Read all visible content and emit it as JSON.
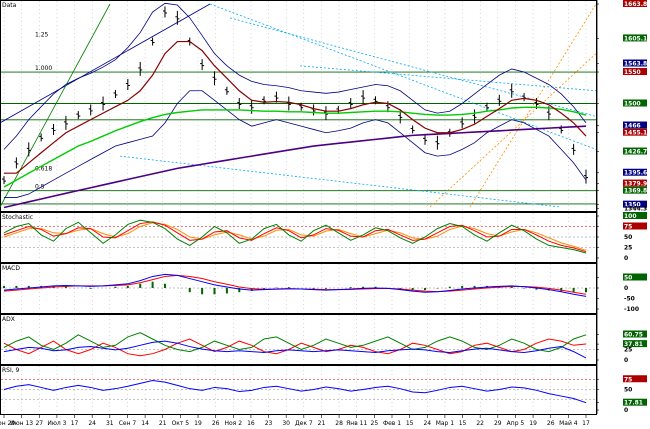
{
  "chart_data": {
    "type": "line",
    "panels": [
      {
        "name": "Data",
        "title": "Data",
        "ylim": [
          1346.7,
          1663.8
        ],
        "log": true,
        "ticks": [
          1663.8,
          1605.18,
          1563.8,
          1550,
          1500,
          1466,
          1455.11,
          1426.77,
          1395.63,
          1379.98,
          1369.82,
          1350,
          1344.3
        ],
        "fib_labels": [
          "1.25",
          "1.000",
          "0.618",
          "0.5"
        ],
        "fib_levels": [
          1605.18,
          1550,
          1395.63,
          1370
        ],
        "horizontal_levels": [
          1550,
          1500,
          1474.8,
          1369.82,
          1351
        ]
      },
      {
        "name": "Stochastic",
        "title": "Stochastic",
        "ylim": [
          0,
          100
        ],
        "ticks": [
          100,
          75,
          50,
          25,
          0
        ],
        "ref_lines": [
          75,
          50,
          25
        ]
      },
      {
        "name": "MACD",
        "title": "MACD",
        "ylim": [
          -100,
          100
        ],
        "ticks": [
          50,
          0,
          -50,
          -100
        ],
        "ref_lines": [
          0
        ]
      },
      {
        "name": "ADX",
        "title": "ADX",
        "ylim": [
          0,
          100
        ],
        "ticks": [
          60.75,
          37.81,
          25,
          0
        ],
        "ref_lines": [
          25
        ]
      },
      {
        "name": "RSI",
        "title": "RSI, 9",
        "ylim": [
          0,
          100
        ],
        "ticks": [
          75,
          50,
          17.81,
          0
        ],
        "ref_lines": [
          75,
          50,
          25
        ]
      }
    ],
    "x_tick_labels": [
      "Мон 29",
      "Июн 13",
      "27",
      "Июл 3",
      "17",
      "24",
      "31",
      "Сен 7",
      "14",
      "21",
      "Окт 5",
      "19",
      "26",
      "Ноя 2",
      "16",
      "23",
      "30",
      "Дек 7",
      "21",
      "28",
      "Янв 11",
      "25",
      "Фев 1",
      "15",
      "24",
      "Мар 1",
      "15",
      "22",
      "29",
      "Апр 5",
      "19",
      "26",
      "Май 4",
      "17"
    ],
    "series": [
      {
        "name": "Price",
        "color": "#000000",
        "values": [
          1385,
          1410,
          1430,
          1448,
          1460,
          1470,
          1482,
          1490,
          1500,
          1515,
          1530,
          1555,
          1600,
          1650,
          1640,
          1600,
          1562,
          1540,
          1520,
          1500,
          1495,
          1505,
          1510,
          1500,
          1495,
          1490,
          1485,
          1490,
          1500,
          1510,
          1505,
          1495,
          1480,
          1460,
          1445,
          1440,
          1455,
          1470,
          1480,
          1495,
          1505,
          1520,
          1510,
          1500,
          1485,
          1460,
          1430,
          1390
        ]
      },
      {
        "name": "MA short",
        "color": "#8b0000",
        "values": [
          1395,
          1395,
          1410,
          1425,
          1440,
          1455,
          1465,
          1475,
          1485,
          1495,
          1505,
          1520,
          1545,
          1580,
          1600,
          1600,
          1585,
          1560,
          1540,
          1520,
          1505,
          1502,
          1503,
          1502,
          1498,
          1492,
          1488,
          1488,
          1492,
          1498,
          1502,
          1500,
          1490,
          1475,
          1462,
          1455,
          1455,
          1460,
          1468,
          1480,
          1492,
          1505,
          1508,
          1505,
          1498,
          1485,
          1470,
          1450
        ]
      },
      {
        "name": "MA mid",
        "color": "#00cc00",
        "values": [
          1375,
          1385,
          1395,
          1405,
          1415,
          1425,
          1435,
          1442,
          1450,
          1458,
          1465,
          1472,
          1478,
          1483,
          1486,
          1488,
          1490,
          1490,
          1490,
          1490,
          1489,
          1488,
          1488,
          1487,
          1487,
          1486,
          1485,
          1485,
          1486,
          1487,
          1488,
          1488,
          1487,
          1485,
          1483,
          1482,
          1482,
          1483,
          1485,
          1488,
          1490,
          1493,
          1494,
          1494,
          1493,
          1491,
          1487,
          1482
        ]
      },
      {
        "name": "MA long",
        "color": "#4b0082",
        "values": [
          1346,
          1350,
          1354,
          1358,
          1362,
          1366,
          1370,
          1374,
          1378,
          1382,
          1386,
          1390,
          1394,
          1398,
          1402,
          1405,
          1408,
          1411,
          1414,
          1417,
          1420,
          1423,
          1426,
          1429,
          1432,
          1435,
          1437,
          1439,
          1441,
          1443,
          1445,
          1447,
          1449,
          1451,
          1452,
          1453,
          1454,
          1455,
          1456,
          1457,
          1458,
          1459,
          1460,
          1461,
          1462,
          1463,
          1464,
          1465
        ]
      },
      {
        "name": "Band upper",
        "color": "#000080",
        "values": [
          1430,
          1450,
          1475,
          1495,
          1515,
          1530,
          1540,
          1548,
          1558,
          1570,
          1590,
          1615,
          1650,
          1665,
          1662,
          1640,
          1610,
          1580,
          1560,
          1545,
          1535,
          1530,
          1528,
          1525,
          1520,
          1518,
          1516,
          1518,
          1522,
          1526,
          1530,
          1528,
          1520,
          1505,
          1490,
          1485,
          1488,
          1500,
          1515,
          1530,
          1545,
          1555,
          1550,
          1540,
          1530,
          1515,
          1495,
          1470
        ]
      },
      {
        "name": "Band lower",
        "color": "#000080",
        "values": [
          1360,
          1360,
          1365,
          1375,
          1385,
          1395,
          1405,
          1415,
          1425,
          1435,
          1440,
          1445,
          1450,
          1470,
          1500,
          1520,
          1520,
          1505,
          1490,
          1475,
          1465,
          1470,
          1475,
          1470,
          1465,
          1460,
          1455,
          1458,
          1462,
          1470,
          1475,
          1470,
          1455,
          1440,
          1425,
          1420,
          1422,
          1430,
          1440,
          1455,
          1465,
          1475,
          1470,
          1460,
          1450,
          1430,
          1410,
          1385
        ]
      },
      {
        "name": "%K",
        "color": "#008000",
        "values": [
          60,
          75,
          82,
          55,
          40,
          70,
          85,
          60,
          35,
          55,
          80,
          90,
          85,
          70,
          45,
          30,
          50,
          75,
          60,
          35,
          45,
          70,
          80,
          55,
          40,
          65,
          78,
          60,
          42,
          55,
          72,
          65,
          48,
          35,
          50,
          70,
          82,
          75,
          55,
          40,
          60,
          78,
          65,
          45,
          30,
          25,
          20,
          12
        ]
      },
      {
        "name": "%D",
        "color": "#ff0000",
        "values": [
          55,
          65,
          75,
          68,
          52,
          58,
          72,
          70,
          50,
          48,
          65,
          82,
          86,
          78,
          60,
          42,
          45,
          62,
          65,
          48,
          42,
          58,
          72,
          65,
          48,
          55,
          70,
          66,
          52,
          50,
          65,
          68,
          55,
          42,
          45,
          60,
          75,
          78,
          65,
          50,
          52,
          68,
          68,
          55,
          40,
          30,
          24,
          15
        ]
      },
      {
        "name": "%Slow",
        "color": "#ff8c00",
        "values": [
          50,
          60,
          70,
          70,
          60,
          58,
          66,
          70,
          58,
          50,
          58,
          75,
          84,
          80,
          68,
          50,
          45,
          55,
          62,
          55,
          45,
          52,
          66,
          68,
          55,
          52,
          64,
          68,
          58,
          50,
          58,
          66,
          60,
          48,
          45,
          52,
          68,
          76,
          70,
          58,
          52,
          62,
          68,
          60,
          48,
          36,
          28,
          18
        ]
      },
      {
        "name": "MACD",
        "color": "#0000ff",
        "values": [
          -10,
          -5,
          0,
          5,
          10,
          12,
          10,
          8,
          10,
          15,
          20,
          35,
          55,
          65,
          60,
          45,
          30,
          15,
          5,
          -5,
          -10,
          -8,
          -5,
          -3,
          -5,
          -8,
          -10,
          -8,
          -5,
          -2,
          0,
          -2,
          -8,
          -15,
          -20,
          -18,
          -12,
          -5,
          0,
          5,
          8,
          10,
          6,
          0,
          -8,
          -18,
          -30,
          -40
        ]
      },
      {
        "name": "Signal",
        "color": "#ff0000",
        "values": [
          -15,
          -10,
          -5,
          0,
          5,
          8,
          10,
          10,
          10,
          12,
          15,
          25,
          40,
          55,
          60,
          55,
          45,
          30,
          18,
          5,
          -3,
          -6,
          -6,
          -5,
          -5,
          -6,
          -8,
          -8,
          -7,
          -5,
          -3,
          -2,
          -5,
          -10,
          -15,
          -17,
          -15,
          -10,
          -5,
          0,
          4,
          7,
          7,
          4,
          -2,
          -10,
          -20,
          -30
        ]
      },
      {
        "name": "+DI",
        "color": "#008000",
        "values": [
          30,
          45,
          55,
          35,
          25,
          40,
          60,
          45,
          30,
          35,
          55,
          65,
          50,
          35,
          25,
          20,
          30,
          45,
          35,
          25,
          30,
          50,
          55,
          40,
          25,
          35,
          50,
          40,
          30,
          35,
          45,
          55,
          40,
          25,
          30,
          45,
          55,
          45,
          30,
          25,
          35,
          50,
          40,
          25,
          20,
          30,
          50,
          60
        ]
      },
      {
        "name": "-DI",
        "color": "#ff0000",
        "values": [
          40,
          25,
          15,
          30,
          45,
          25,
          15,
          25,
          40,
          30,
          15,
          10,
          15,
          25,
          40,
          50,
          35,
          20,
          30,
          45,
          35,
          20,
          15,
          25,
          40,
          30,
          20,
          25,
          35,
          30,
          20,
          15,
          25,
          40,
          35,
          25,
          15,
          20,
          35,
          40,
          30,
          20,
          25,
          40,
          50,
          45,
          35,
          38
        ]
      },
      {
        "name": "ADX",
        "color": "#0000ff",
        "values": [
          20,
          25,
          30,
          28,
          22,
          24,
          30,
          32,
          28,
          24,
          28,
          35,
          42,
          45,
          40,
          32,
          26,
          22,
          20,
          22,
          20,
          18,
          22,
          24,
          22,
          20,
          22,
          24,
          22,
          20,
          18,
          22,
          24,
          26,
          24,
          20,
          18,
          22,
          26,
          28,
          24,
          20,
          18,
          22,
          28,
          32,
          20,
          5
        ]
      },
      {
        "name": "RSI",
        "color": "#0000ff",
        "values": [
          50,
          58,
          62,
          55,
          48,
          55,
          60,
          55,
          48,
          52,
          58,
          65,
          72,
          68,
          60,
          52,
          48,
          55,
          52,
          45,
          48,
          55,
          58,
          52,
          46,
          50,
          56,
          52,
          46,
          50,
          55,
          58,
          52,
          44,
          42,
          48,
          55,
          58,
          52,
          46,
          50,
          56,
          54,
          48,
          40,
          34,
          28,
          17.81
        ]
      }
    ]
  }
}
